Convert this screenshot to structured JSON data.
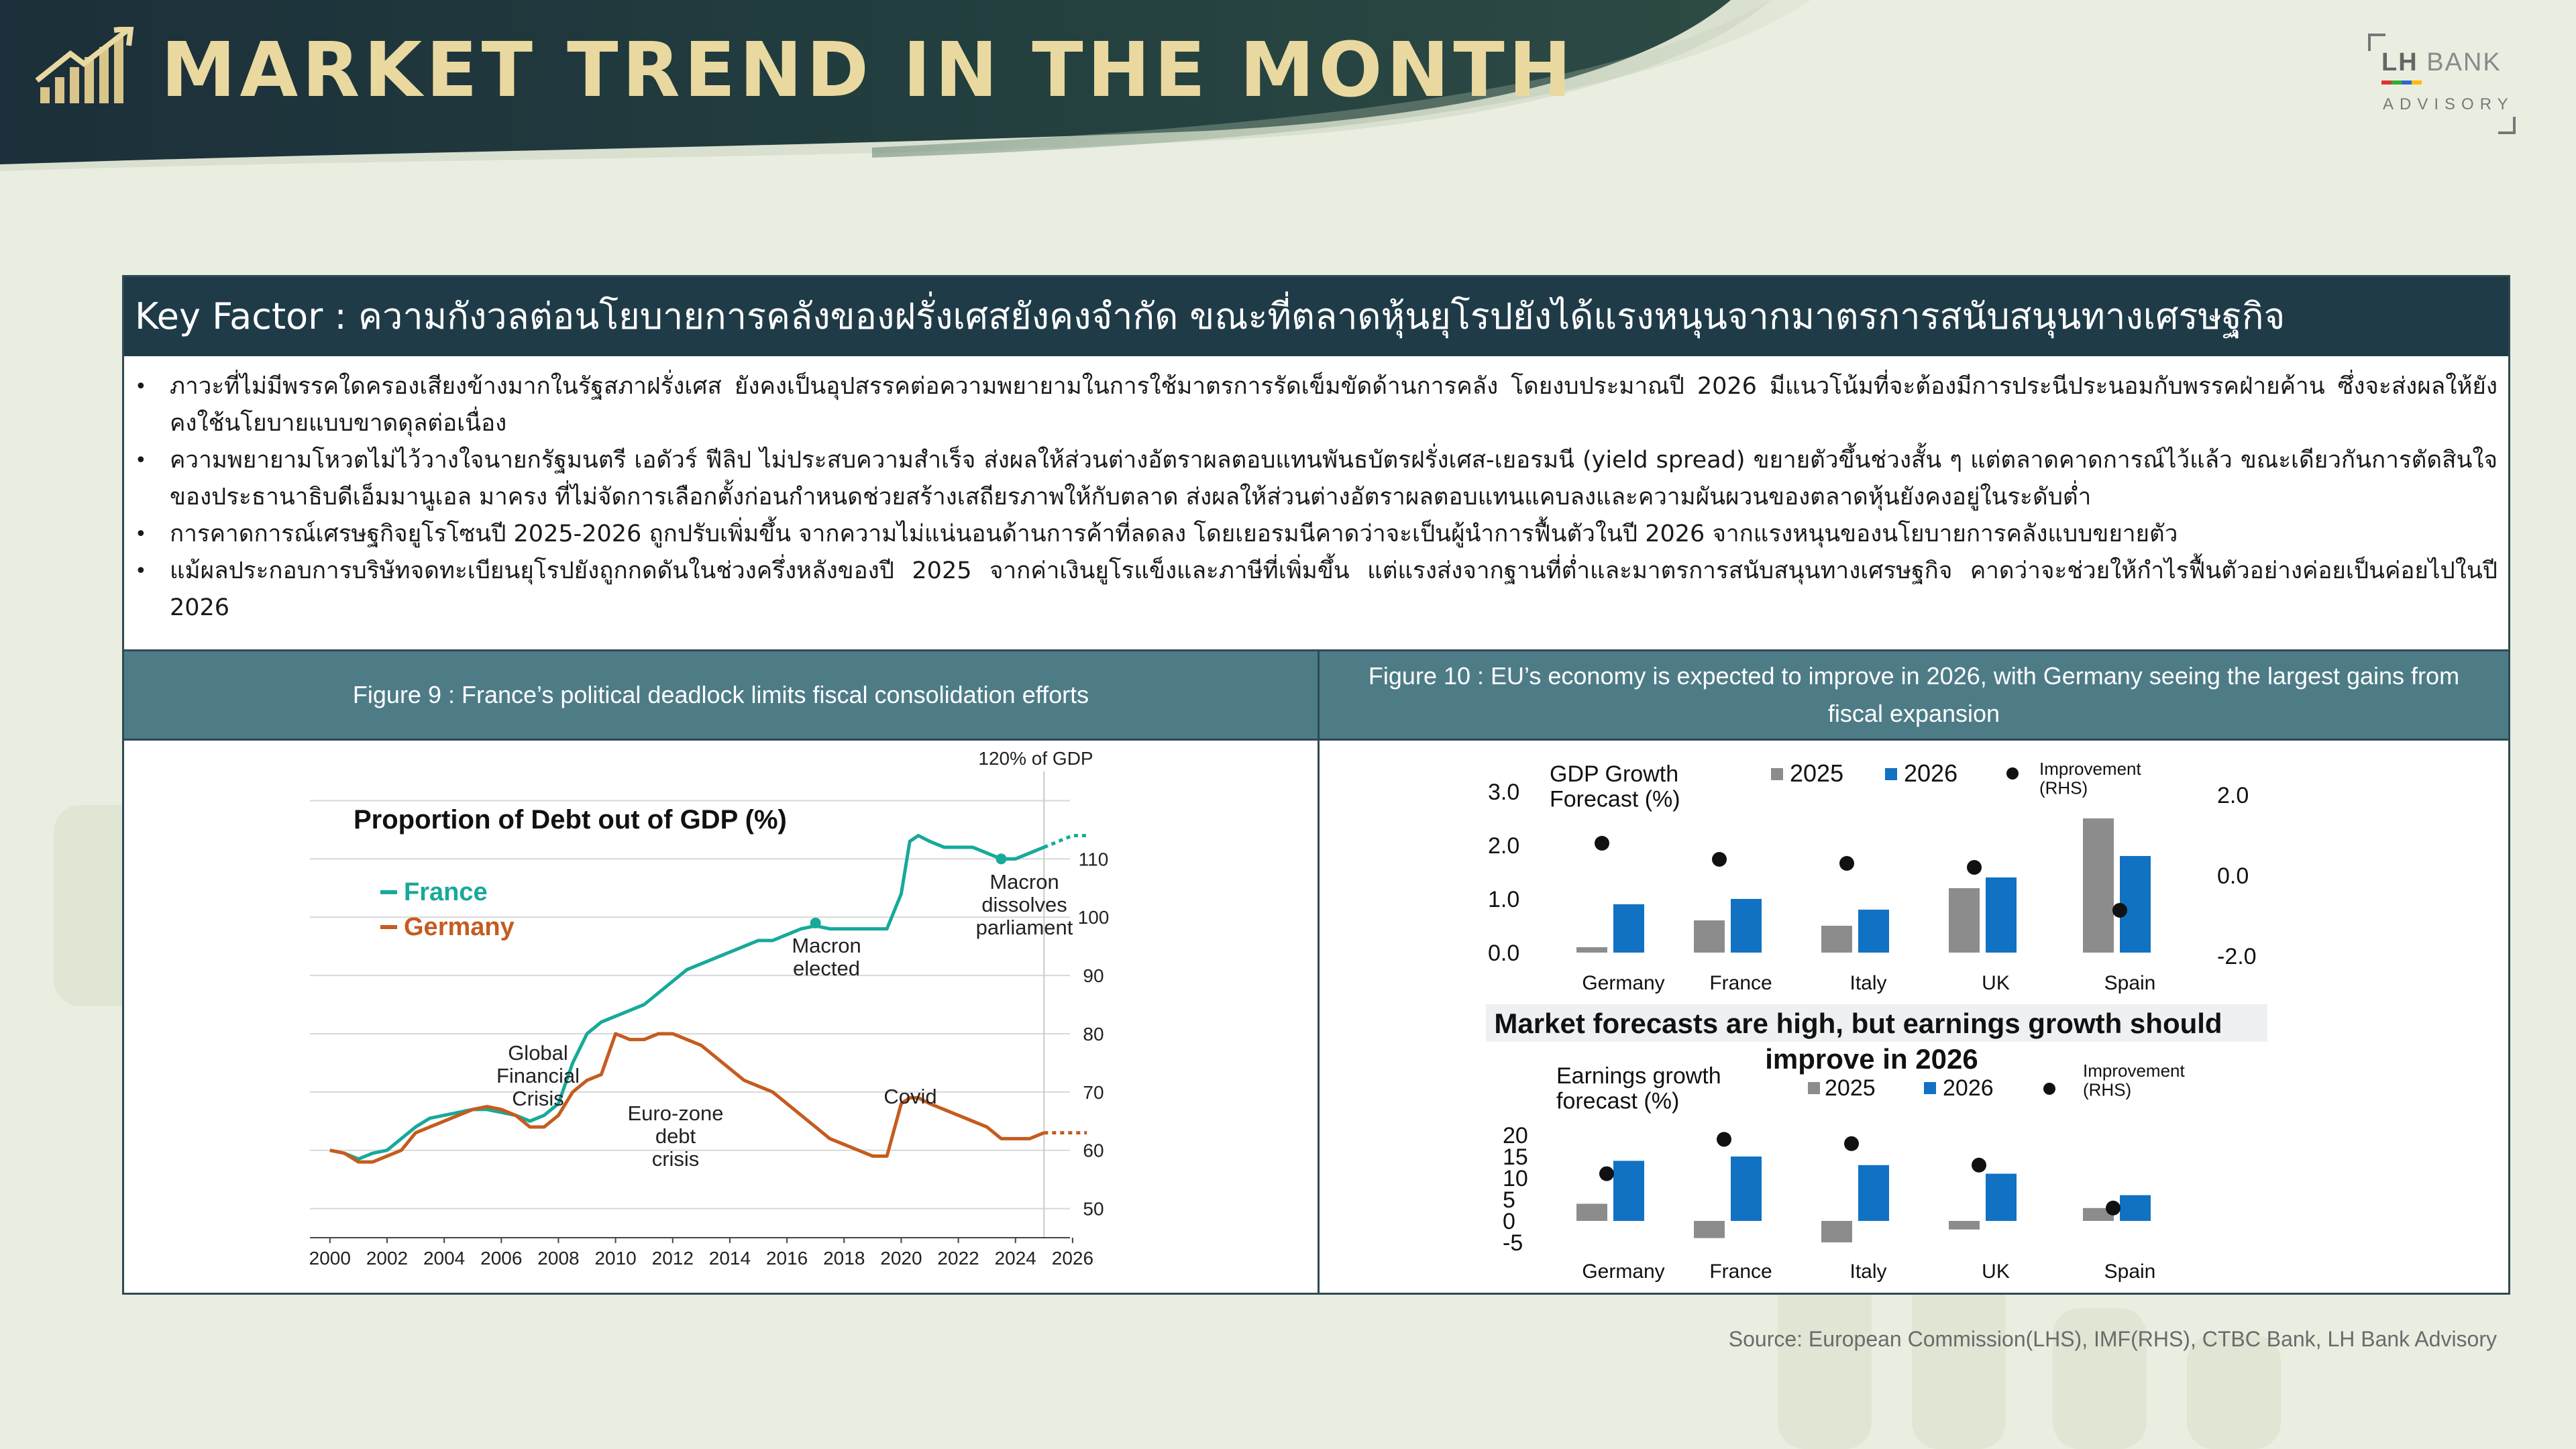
{
  "header": {
    "title": "MARKET TREND IN THE MONTH",
    "logo_main_bold": "LH",
    "logo_main": "BANK",
    "logo_sub": "ADVISORY"
  },
  "key_factor": "Key Factor : ความกังวลต่อนโยบายการคลังของฝรั่งเศสยังคงจำกัด ขณะที่ตลาดหุ้นยุโรปยังได้แรงหนุนจากมาตรการสนับสนุนทางเศรษฐกิจ",
  "bullets": [
    "ภาวะที่ไม่มีพรรคใดครองเสียงข้างมากในรัฐสภาฝรั่งเศส ยังคงเป็นอุปสรรคต่อความพยายามในการใช้มาตรการรัดเข็มขัดด้านการคลัง โดยงบประมาณปี 2026 มีแนวโน้มที่จะต้องมีการประนีประนอมกับพรรคฝ่ายค้าน ซึ่งจะส่งผลให้ยังคงใช้นโยบายแบบขาดดุลต่อเนื่อง",
    "ความพยายามโหวตไม่ไว้วางใจนายกรัฐมนตรี เอดัวร์ ฟีลิป ไม่ประสบความสำเร็จ ส่งผลให้ส่วนต่างอัตราผลตอบแทนพันธบัตรฝรั่งเศส-เยอรมนี (yield spread) ขยายตัวขึ้นช่วงสั้น ๆ แต่ตลาดคาดการณ์ไว้แล้ว ขณะเดียวกันการตัดสินใจของประธานาธิบดีเอ็มมานูเอล มาครง ที่ไม่จัดการเลือกตั้งก่อนกำหนดช่วยสร้างเสถียรภาพให้กับตลาด ส่งผลให้ส่วนต่างอัตราผลตอบแทนแคบลงและความผันผวนของตลาดหุ้นยังคงอยู่ในระดับต่ำ",
    "การคาดการณ์เศรษฐกิจยูโรโซนปี 2025-2026 ถูกปรับเพิ่มขึ้น จากความไม่แน่นอนด้านการค้าที่ลดลง โดยเยอรมนีคาดว่าจะเป็นผู้นำการฟื้นตัวในปี 2026 จากแรงหนุนของนโยบายการคลังแบบขยายตัว",
    "แม้ผลประกอบการบริษัทจดทะเบียนยุโรปยังถูกกดดันในช่วงครึ่งหลังของปี 2025 จากค่าเงินยูโรแข็งและภาษีที่เพิ่มขึ้น แต่แรงส่งจากฐานที่ต่ำและมาตรการสนับสนุนทางเศรษฐกิจ คาดว่าจะช่วยให้กำไรฟื้นตัวอย่างค่อยเป็นค่อยไปในปี 2026"
  ],
  "fig9_title": "Figure 9 : France’s political deadlock limits fiscal consolidation efforts",
  "fig10_title": "Figure 10 : EU’s economy is expected to improve in 2026, with Germany seeing the largest gains from fiscal expansion",
  "source": "Source: European Commission(LHS), IMF(RHS), CTBC Bank, LH Bank Advisory",
  "colors": {
    "france": "#17a99a",
    "germany": "#c45c1f",
    "y2025": "#8c8c8c",
    "y2026": "#1172c4",
    "dark": "#1f3b48"
  },
  "chart_data": [
    {
      "type": "line",
      "title": "Proportion of Debt out of GDP (%)",
      "ylim": [
        45,
        125
      ],
      "yticks": [
        50,
        60,
        70,
        80,
        90,
        100,
        110
      ],
      "ytick_top_label": "120% of GDP",
      "xticks": [
        2000,
        2002,
        2004,
        2006,
        2008,
        2010,
        2012,
        2014,
        2016,
        2018,
        2020,
        2022,
        2024,
        2026
      ],
      "annotations": [
        {
          "text": "Global\nFinancial\nCrisis"
        },
        {
          "text": "Euro-zone\ndebt\ncrisis"
        },
        {
          "text": "Macron\nelected"
        },
        {
          "text": "Covid"
        },
        {
          "text": "Macron\ndissolves\nparliament"
        }
      ],
      "series": [
        {
          "name": "France",
          "color": "#17a99a",
          "forecast_from": 2025,
          "x": [
            2000,
            2000.5,
            2001,
            2001.5,
            2002,
            2002.5,
            2003,
            2003.5,
            2004,
            2004.5,
            2005,
            2005.5,
            2006,
            2006.5,
            2007,
            2007.5,
            2008,
            2008.5,
            2009,
            2009.5,
            2010,
            2010.5,
            2011,
            2011.5,
            2012,
            2012.5,
            2013,
            2013.5,
            2014,
            2014.5,
            2015,
            2015.5,
            2016,
            2016.5,
            2017,
            2017.5,
            2018,
            2018.5,
            2019,
            2019.5,
            2020,
            2020.3,
            2020.6,
            2021,
            2021.5,
            2022,
            2022.5,
            2023,
            2023.5,
            2024,
            2024.5,
            2025,
            2025.5,
            2026,
            2026.5
          ],
          "y": [
            60,
            59.5,
            58.5,
            59.5,
            60,
            62,
            64,
            65.5,
            66,
            66.5,
            67,
            67,
            66.5,
            66,
            65,
            66,
            68,
            75,
            80,
            82,
            83,
            84,
            85,
            87,
            89,
            91,
            92,
            93,
            94,
            95,
            96,
            96,
            97,
            98,
            98.5,
            98,
            98,
            98,
            98,
            98,
            104,
            113,
            114,
            113,
            112,
            112,
            112,
            111,
            110,
            110,
            111,
            112,
            113,
            114,
            114
          ]
        },
        {
          "name": "Germany",
          "color": "#c45c1f",
          "forecast_from": 2025,
          "x": [
            2000,
            2000.5,
            2001,
            2001.5,
            2002,
            2002.5,
            2003,
            2003.5,
            2004,
            2004.5,
            2005,
            2005.5,
            2006,
            2006.5,
            2007,
            2007.5,
            2008,
            2008.5,
            2009,
            2009.5,
            2010,
            2010.5,
            2011,
            2011.5,
            2012,
            2012.5,
            2013,
            2013.5,
            2014,
            2014.5,
            2015,
            2015.5,
            2016,
            2016.5,
            2017,
            2017.5,
            2018,
            2018.5,
            2019,
            2019.5,
            2020,
            2020.3,
            2020.6,
            2021,
            2021.5,
            2022,
            2022.5,
            2023,
            2023.5,
            2024,
            2024.5,
            2025,
            2025.5,
            2026,
            2026.5
          ],
          "y": [
            60,
            59.5,
            58,
            58,
            59,
            60,
            63,
            64,
            65,
            66,
            67,
            67.5,
            67,
            66,
            64,
            64,
            66,
            70,
            72,
            73,
            80,
            79,
            79,
            80,
            80,
            79,
            78,
            76,
            74,
            72,
            71,
            70,
            68,
            66,
            64,
            62,
            61,
            60,
            59,
            59,
            68,
            69,
            69,
            68,
            67,
            66,
            65,
            64,
            62,
            62,
            62,
            63,
            63,
            63,
            63
          ]
        }
      ]
    },
    {
      "type": "bar",
      "title": "GDP Growth\nForecast (%)",
      "categories": [
        "Germany",
        "France",
        "Italy",
        "UK",
        "Spain"
      ],
      "y_ticks_left": [
        0.0,
        1.0,
        2.0,
        3.0
      ],
      "y_ticks_right": [
        -2.0,
        0.0,
        2.0
      ],
      "legend": [
        "2025",
        "2026",
        "Improvement\n(RHS)"
      ],
      "series": [
        {
          "name": "2025",
          "values": [
            0.1,
            0.6,
            0.5,
            1.2,
            2.5
          ]
        },
        {
          "name": "2026",
          "values": [
            0.9,
            1.0,
            0.8,
            1.4,
            1.8
          ]
        },
        {
          "name": "Improvement (RHS)",
          "values": [
            0.8,
            0.4,
            0.3,
            0.2,
            -0.7
          ]
        }
      ]
    },
    {
      "type": "bar",
      "title": "Earnings growth\nforecast (%)",
      "subtitle": "Market forecasts are high, but earnings growth should improve in 2026",
      "categories": [
        "Germany",
        "France",
        "Italy",
        "UK",
        "Spain"
      ],
      "y_ticks_left": [
        -5,
        0,
        5,
        10,
        15,
        20
      ],
      "legend": [
        "2025",
        "2026",
        "Improvement\n(RHS)"
      ],
      "series": [
        {
          "name": "2025",
          "values": [
            4,
            -4,
            -5,
            -2,
            3
          ]
        },
        {
          "name": "2026",
          "values": [
            14,
            15,
            13,
            11,
            6
          ]
        },
        {
          "name": "Improvement (RHS)",
          "values": [
            11,
            19,
            18,
            13,
            3
          ]
        }
      ]
    }
  ]
}
